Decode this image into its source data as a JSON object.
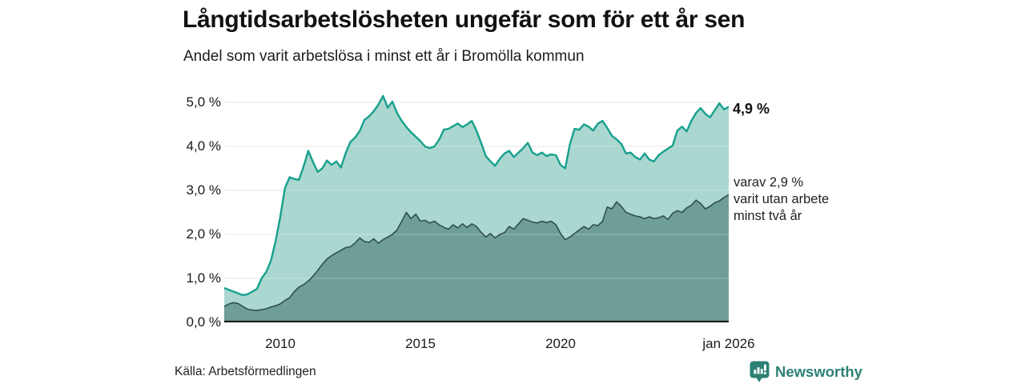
{
  "header": {
    "title": "Långtidsarbetslösheten ungefär som för ett år sen",
    "subtitle": "Andel som varit arbetslösa i minst ett år i Bromölla kommun"
  },
  "annotations": {
    "latest_total": "4,9 %",
    "latest_two_years_text": "varav 2,9 %\nvarit utan arbete\nminst två år"
  },
  "footer": {
    "source": "Källa: Arbetsförmedlingen",
    "brand": "Newsworthy"
  },
  "colors": {
    "line_top": "#17a08d",
    "fill_top": "#aad7cf",
    "line_bottom": "#2e4f4a",
    "fill_bottom": "#6f9e99",
    "gridline": "#dcdcdc",
    "gridline_over_fill": "rgba(255,255,255,0.30)",
    "baseline": "#1b1b1b",
    "text": "#1a1a1a",
    "brand_teal": "#2b8174"
  },
  "chart_data": {
    "type": "area",
    "title": "Långtidsarbetslösheten ungefär som för ett år sen",
    "subtitle": "Andel som varit arbetslösa i minst ett år i Bromölla kommun",
    "xlabel": "",
    "ylabel": "",
    "x_start": 2008.0,
    "x_end": 2026.0,
    "x_step_years": 0.166667,
    "ylim": [
      0,
      5.33
    ],
    "grid": "horizontal",
    "legend_position": "right-edge-labels",
    "y_ticks": [
      {
        "value": 0,
        "label": "0,0 %"
      },
      {
        "value": 1,
        "label": "1,0 %"
      },
      {
        "value": 2,
        "label": "2,0 %"
      },
      {
        "value": 3,
        "label": "3,0 %"
      },
      {
        "value": 4,
        "label": "4,0 %"
      },
      {
        "value": 5,
        "label": "5,0 %"
      }
    ],
    "x_ticks": [
      {
        "year": 2010,
        "label": "2010"
      },
      {
        "year": 2015,
        "label": "2015"
      },
      {
        "year": 2020,
        "label": "2020"
      },
      {
        "year": 2026,
        "label": "jan 2026"
      }
    ],
    "series": [
      {
        "name": "Andel arbetslösa minst ett år",
        "end_label": "4,9 %",
        "latest_value": 4.9,
        "values": [
          0.78,
          0.74,
          0.7,
          0.66,
          0.62,
          0.64,
          0.7,
          0.76,
          1.0,
          1.15,
          1.4,
          1.85,
          2.4,
          3.05,
          3.3,
          3.26,
          3.24,
          3.55,
          3.9,
          3.65,
          3.42,
          3.5,
          3.68,
          3.58,
          3.66,
          3.52,
          3.85,
          4.1,
          4.2,
          4.35,
          4.6,
          4.68,
          4.8,
          4.95,
          5.15,
          4.88,
          5.02,
          4.76,
          4.58,
          4.44,
          4.32,
          4.22,
          4.12,
          4.0,
          3.96,
          4.0,
          4.15,
          4.38,
          4.4,
          4.46,
          4.52,
          4.44,
          4.5,
          4.58,
          4.36,
          4.08,
          3.78,
          3.66,
          3.56,
          3.72,
          3.84,
          3.9,
          3.76,
          3.86,
          3.96,
          4.08,
          3.86,
          3.8,
          3.86,
          3.78,
          3.82,
          3.8,
          3.58,
          3.5,
          4.05,
          4.4,
          4.38,
          4.5,
          4.45,
          4.36,
          4.52,
          4.58,
          4.42,
          4.24,
          4.16,
          4.06,
          3.84,
          3.86,
          3.76,
          3.7,
          3.84,
          3.7,
          3.66,
          3.8,
          3.88,
          3.95,
          4.02,
          4.36,
          4.45,
          4.34,
          4.58,
          4.76,
          4.87,
          4.74,
          4.66,
          4.82,
          4.98,
          4.84,
          4.9
        ]
      },
      {
        "name": "varav utan arbete minst två år",
        "end_label": "varav 2,9 % varit utan arbete minst två år",
        "latest_value": 2.9,
        "values": [
          0.36,
          0.42,
          0.45,
          0.43,
          0.36,
          0.3,
          0.28,
          0.27,
          0.29,
          0.31,
          0.35,
          0.38,
          0.42,
          0.5,
          0.56,
          0.7,
          0.8,
          0.86,
          0.94,
          1.05,
          1.18,
          1.32,
          1.44,
          1.52,
          1.58,
          1.64,
          1.7,
          1.72,
          1.8,
          1.92,
          1.84,
          1.82,
          1.9,
          1.8,
          1.88,
          1.94,
          2.0,
          2.1,
          2.3,
          2.5,
          2.36,
          2.46,
          2.3,
          2.32,
          2.26,
          2.3,
          2.22,
          2.16,
          2.12,
          2.22,
          2.15,
          2.24,
          2.16,
          2.24,
          2.18,
          2.05,
          1.94,
          2.02,
          1.92,
          2.0,
          2.04,
          2.18,
          2.12,
          2.24,
          2.36,
          2.32,
          2.28,
          2.26,
          2.3,
          2.27,
          2.3,
          2.22,
          2.02,
          1.88,
          1.94,
          2.02,
          2.1,
          2.18,
          2.12,
          2.22,
          2.2,
          2.3,
          2.62,
          2.58,
          2.74,
          2.64,
          2.5,
          2.46,
          2.42,
          2.4,
          2.36,
          2.4,
          2.36,
          2.38,
          2.42,
          2.34,
          2.48,
          2.54,
          2.5,
          2.6,
          2.66,
          2.78,
          2.7,
          2.58,
          2.64,
          2.72,
          2.76,
          2.84,
          2.9
        ]
      }
    ]
  }
}
